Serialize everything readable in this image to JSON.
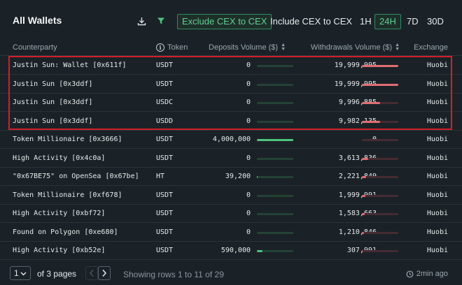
{
  "header": {
    "title": "All Wallets",
    "cex_options": [
      {
        "label": "Exclude CEX to CEX",
        "active": true
      },
      {
        "label": "Include CEX to CEX",
        "active": false
      }
    ],
    "timeframes": [
      {
        "label": "1H",
        "active": false
      },
      {
        "label": "24H",
        "active": true
      },
      {
        "label": "7D",
        "active": false
      },
      {
        "label": "30D",
        "active": false
      }
    ],
    "icons": {
      "download": "download-icon",
      "filter": "filter-icon"
    }
  },
  "table": {
    "columns": {
      "counterparty": "Counterparty",
      "token": "Token",
      "deposits": "Deposits Volume ($)",
      "withdrawals": "Withdrawals Volume ($)",
      "exchange": "Exchange"
    },
    "rows": [
      {
        "counterparty": "Justin Sun: Wallet [0x611f]",
        "token": "USDT",
        "deposits": "0",
        "withdrawals": "19,999,995",
        "exchange": "Huobi",
        "deposit_fraction": 0,
        "withdrawal_fraction": 1.0
      },
      {
        "counterparty": "Justin Sun [0x3ddf]",
        "token": "USDT",
        "deposits": "0",
        "withdrawals": "19,999,995",
        "exchange": "Huobi",
        "deposit_fraction": 0,
        "withdrawal_fraction": 1.0
      },
      {
        "counterparty": "Justin Sun [0x3ddf]",
        "token": "USDC",
        "deposits": "0",
        "withdrawals": "9,996,885",
        "exchange": "Huobi",
        "deposit_fraction": 0,
        "withdrawal_fraction": 0.5
      },
      {
        "counterparty": "Justin Sun [0x3ddf]",
        "token": "USDD",
        "deposits": "0",
        "withdrawals": "9,982,135",
        "exchange": "Huobi",
        "deposit_fraction": 0,
        "withdrawal_fraction": 0.5
      },
      {
        "counterparty": "Token Millionaire [0x3666]",
        "token": "USDT",
        "deposits": "4,000,000",
        "withdrawals": "0",
        "exchange": "Huobi",
        "deposit_fraction": 1.0,
        "withdrawal_fraction": 0
      },
      {
        "counterparty": "High Activity [0x4c0a]",
        "token": "USDT",
        "deposits": "0",
        "withdrawals": "3,613,836",
        "exchange": "Huobi",
        "deposit_fraction": 0,
        "withdrawal_fraction": 0.18
      },
      {
        "counterparty": "\"0x67BE75\" on OpenSea [0x67be]",
        "token": "HT",
        "deposits": "39,200",
        "withdrawals": "2,221,849",
        "exchange": "Huobi",
        "deposit_fraction": 0.01,
        "withdrawal_fraction": 0.11
      },
      {
        "counterparty": "Token Millionaire [0xf678]",
        "token": "USDT",
        "deposits": "0",
        "withdrawals": "1,999,991",
        "exchange": "Huobi",
        "deposit_fraction": 0,
        "withdrawal_fraction": 0.1
      },
      {
        "counterparty": "High Activity [0xbf72]",
        "token": "USDT",
        "deposits": "0",
        "withdrawals": "1,583,663",
        "exchange": "Huobi",
        "deposit_fraction": 0,
        "withdrawal_fraction": 0.08
      },
      {
        "counterparty": "Found on Polygon [0xe680]",
        "token": "USDT",
        "deposits": "0",
        "withdrawals": "1,210,846",
        "exchange": "Huobi",
        "deposit_fraction": 0,
        "withdrawal_fraction": 0.06
      },
      {
        "counterparty": "High Activity [0xb52e]",
        "token": "USDT",
        "deposits": "590,000",
        "withdrawals": "307,991",
        "exchange": "Huobi",
        "deposit_fraction": 0.15,
        "withdrawal_fraction": 0.02
      }
    ],
    "highlighted_rows": [
      0,
      1,
      2,
      3
    ]
  },
  "footer": {
    "page_value": "1",
    "of_pages": "of 3 pages",
    "showing": "Showing rows 1 to 11 of 29",
    "updated": "2min ago"
  },
  "colors": {
    "background": "#1b2227",
    "accent_green": "#4cc47f",
    "withdraw_red": "#e06e72",
    "highlight_border": "#d21e2b"
  }
}
